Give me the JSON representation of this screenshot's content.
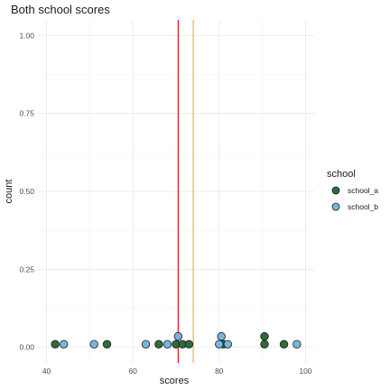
{
  "chart_data": {
    "type": "scatter",
    "title": "Both school scores",
    "xlabel": "scores",
    "ylabel": "count",
    "xlim": [
      38,
      102
    ],
    "ylim": [
      -0.05,
      1.05
    ],
    "x_ticks": [
      40,
      60,
      80,
      100
    ],
    "x_tick_labels": [
      "40",
      "60",
      "80",
      "100"
    ],
    "y_ticks": [
      0.0,
      0.25,
      0.5,
      0.75,
      1.0
    ],
    "y_tick_labels": [
      "0.00",
      "0.25",
      "0.50",
      "0.75",
      "1.00"
    ],
    "grid": true,
    "legend": {
      "title": "school",
      "position": "right"
    },
    "series": [
      {
        "name": "school_a",
        "color": "#2e6b3a",
        "points": [
          {
            "x": 42,
            "y": 0.01
          },
          {
            "x": 54,
            "y": 0.01
          },
          {
            "x": 66,
            "y": 0.01
          },
          {
            "x": 70,
            "y": 0.01
          },
          {
            "x": 71.5,
            "y": 0.01
          },
          {
            "x": 73,
            "y": 0.01
          },
          {
            "x": 81,
            "y": 0.01
          },
          {
            "x": 90.5,
            "y": 0.01
          },
          {
            "x": 90.5,
            "y": 0.035
          },
          {
            "x": 95,
            "y": 0.01
          }
        ]
      },
      {
        "name": "school_b",
        "color": "#75b7e0",
        "points": [
          {
            "x": 44,
            "y": 0.01
          },
          {
            "x": 51,
            "y": 0.01
          },
          {
            "x": 63,
            "y": 0.01
          },
          {
            "x": 68,
            "y": 0.01
          },
          {
            "x": 70.5,
            "y": 0.035
          },
          {
            "x": 80,
            "y": 0.01
          },
          {
            "x": 80.5,
            "y": 0.035
          },
          {
            "x": 82,
            "y": 0.01
          },
          {
            "x": 98,
            "y": 0.01
          }
        ]
      }
    ],
    "vlines": [
      {
        "x": 70.5,
        "color": "#e0202b"
      },
      {
        "x": 74,
        "color": "#f5b942"
      }
    ]
  }
}
